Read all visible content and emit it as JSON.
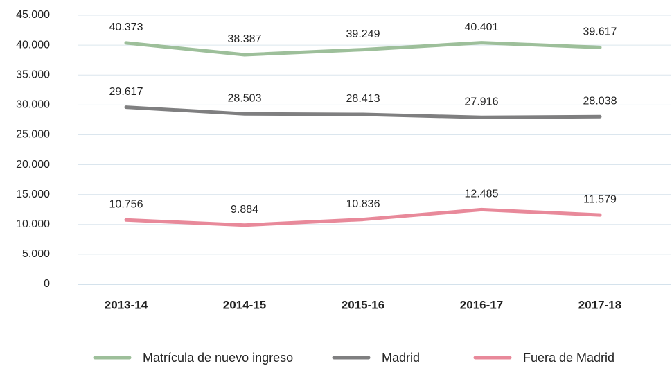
{
  "chart_data": {
    "type": "line",
    "categories": [
      "2013-14",
      "2014-15",
      "2015-16",
      "2016-17",
      "2017-18"
    ],
    "series": [
      {
        "name": "Matrícula de nuevo ingreso",
        "color": "#9dbf9a",
        "values": [
          40373,
          38387,
          39249,
          40401,
          39617
        ],
        "value_labels": [
          "40.373",
          "38.387",
          "39.249",
          "40.401",
          "39.617"
        ]
      },
      {
        "name": "Madrid",
        "color": "#7f7f80",
        "values": [
          29617,
          28503,
          28413,
          27916,
          28038
        ],
        "value_labels": [
          "29.617",
          "28.503",
          "28.413",
          "27.916",
          "28.038"
        ]
      },
      {
        "name": "Fuera de Madrid",
        "color": "#e8899a",
        "values": [
          10756,
          9884,
          10836,
          12485,
          11579
        ],
        "value_labels": [
          "10.756",
          "9.884",
          "10.836",
          "12.485",
          "11.579"
        ]
      }
    ],
    "ylim": [
      0,
      45000
    ],
    "yticks": [
      0,
      {
        "value": 5000,
        "label": "5.000"
      },
      {
        "value": 10000,
        "label": "10.000"
      },
      {
        "value": 15000,
        "label": "15.000"
      },
      {
        "value": 20000,
        "label": "20.000"
      },
      {
        "value": 25000,
        "label": "25.000"
      },
      {
        "value": 30000,
        "label": "30.000"
      },
      {
        "value": 35000,
        "label": "35.000"
      },
      {
        "value": 40000,
        "label": "40.000"
      },
      {
        "value": 45000,
        "label": "45.000"
      }
    ],
    "grid": true,
    "legend": "bottom"
  }
}
